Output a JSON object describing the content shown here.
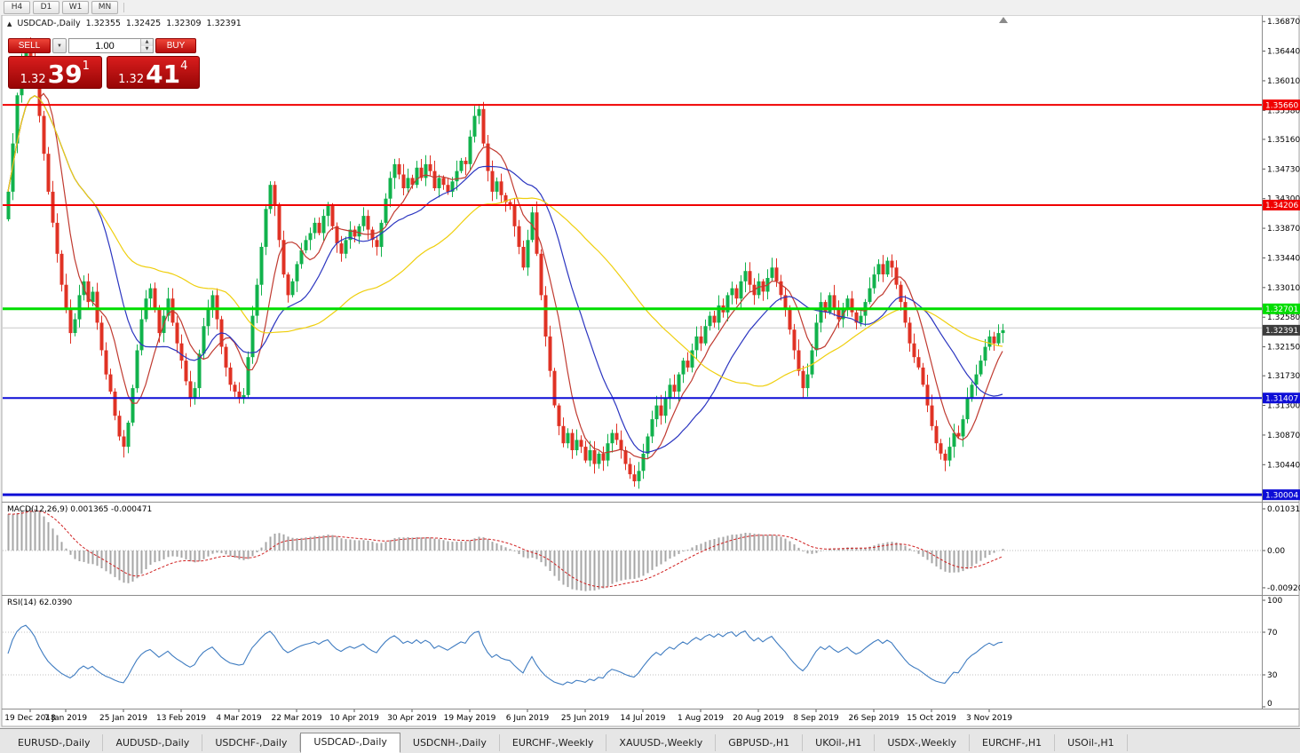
{
  "toolbar": {
    "periods": [
      "H4",
      "D1",
      "W1",
      "MN"
    ]
  },
  "header": {
    "icon": "▲",
    "title": "USDCAD-,Daily",
    "open": "1.32355",
    "high": "1.32425",
    "low": "1.32309",
    "close": "1.32391"
  },
  "trade_panel": {
    "sell_label": "SELL",
    "buy_label": "BUY",
    "volume": "1.00",
    "bid_prefix": "1.32",
    "bid_big": "39",
    "bid_sup": "1",
    "ask_prefix": "1.32",
    "ask_big": "41",
    "ask_sup": "4"
  },
  "price_axis": {
    "labels": [
      "1.36870",
      "1.36440",
      "1.36010",
      "1.35580",
      "1.35160",
      "1.34730",
      "1.34300",
      "1.33870",
      "1.33440",
      "1.33010",
      "1.32580",
      "1.32150",
      "1.31730",
      "1.31300",
      "1.30870",
      "1.30440",
      "1.30010"
    ]
  },
  "levels": [
    {
      "value": 1.3566,
      "label": "1.35660",
      "color": "#f00000",
      "width": 2
    },
    {
      "value": 1.34206,
      "label": "1.34206",
      "color": "#f00000",
      "width": 2
    },
    {
      "value": 1.32701,
      "label": "1.32701",
      "color": "#00dd00",
      "width": 3
    },
    {
      "value": 1.31407,
      "label": "1.31407",
      "color": "#0d0dd6",
      "width": 2
    },
    {
      "value": 1.30004,
      "label": "1.30004",
      "color": "#0d0dd6",
      "width": 3
    }
  ],
  "current_price": {
    "value": 1.32391,
    "label": "1.32391",
    "bg": "#3c3c3c"
  },
  "ask_line": {
    "value": 1.32425,
    "color": "#c8c8c8"
  },
  "macd": {
    "label": "MACD(12,26,9) 0.001365 -0.000471",
    "scale_labels": [
      "0.010311",
      "0.00",
      "-0.009203"
    ],
    "fast": 12,
    "slow": 26,
    "signal": 9,
    "history_bias": 0.009,
    "histogram_color": "#a6a6a6",
    "signal_color": "#d02020"
  },
  "rsi": {
    "label": "RSI(14) 62.0390",
    "scale_labels": [
      "100",
      "70",
      "30",
      "0"
    ],
    "period": 14,
    "levels": [
      70,
      30
    ],
    "line_color": "#3f7cc1"
  },
  "dates": {
    "step": 13,
    "labels": [
      "19 Dec 2018",
      "7 Jan 2019",
      "25 Jan 2019",
      "13 Feb 2019",
      "4 Mar 2019",
      "22 Mar 2019",
      "10 Apr 2019",
      "30 Apr 2019",
      "19 May 2019",
      "6 Jun 2019",
      "25 Jun 2019",
      "14 Jul 2019",
      "1 Aug 2019",
      "20 Aug 2019",
      "8 Sep 2019",
      "26 Sep 2019",
      "15 Oct 2019",
      "3 Nov 2019"
    ]
  },
  "tabs": {
    "active_index": 3,
    "items": [
      "EURUSD-,Daily",
      "AUDUSD-,Daily",
      "USDCHF-,Daily",
      "USDCAD-,Daily",
      "USDCNH-,Daily",
      "EURCHF-,Weekly",
      "XAUUSD-,Weekly",
      "GBPUSD-,H1",
      "UKOil-,H1",
      "USDX-,Weekly",
      "EURCHF-,H1",
      "USOil-,H1"
    ],
    "note": "active tab is USDCAD-,Daily"
  },
  "chart_data": {
    "type": "candlestick",
    "symbol": "USDCAD-",
    "timeframe": "Daily",
    "up_color": "#11b24c",
    "down_color": "#e03224",
    "first_open": 1.34,
    "ma": [
      {
        "period": 8,
        "color": "#c03a30"
      },
      {
        "period": 20,
        "color": "#2b35c0"
      },
      {
        "period": 50,
        "color": "#efcf0e"
      }
    ],
    "closes": [
      1.344,
      1.351,
      1.358,
      1.363,
      1.3655,
      1.3635,
      1.3605,
      1.355,
      1.3495,
      1.344,
      1.3395,
      1.335,
      1.3305,
      1.327,
      1.3235,
      1.3255,
      1.329,
      1.331,
      1.328,
      1.3295,
      1.325,
      1.321,
      1.3175,
      1.315,
      1.3115,
      1.3085,
      1.307,
      1.3105,
      1.3155,
      1.321,
      1.3255,
      1.3285,
      1.33,
      1.327,
      1.3235,
      1.326,
      1.3285,
      1.325,
      1.322,
      1.3195,
      1.3165,
      1.314,
      1.3155,
      1.3205,
      1.3245,
      1.327,
      1.329,
      1.3255,
      1.3215,
      1.3185,
      1.316,
      1.315,
      1.314,
      1.3145,
      1.32,
      1.326,
      1.3305,
      1.336,
      1.3415,
      1.345,
      1.342,
      1.337,
      1.332,
      1.329,
      1.331,
      1.3335,
      1.3355,
      1.337,
      1.338,
      1.3395,
      1.338,
      1.3405,
      1.342,
      1.339,
      1.3365,
      1.335,
      1.337,
      1.3385,
      1.3375,
      1.339,
      1.3405,
      1.3385,
      1.337,
      1.336,
      1.3395,
      1.343,
      1.346,
      1.348,
      1.3465,
      1.3445,
      1.346,
      1.345,
      1.3475,
      1.346,
      1.348,
      1.347,
      1.3445,
      1.346,
      1.345,
      1.344,
      1.3455,
      1.347,
      1.3485,
      1.348,
      1.352,
      1.355,
      1.356,
      1.351,
      1.347,
      1.344,
      1.3455,
      1.3435,
      1.3425,
      1.342,
      1.339,
      1.336,
      1.333,
      1.337,
      1.341,
      1.335,
      1.329,
      1.323,
      1.318,
      1.313,
      1.31,
      1.3075,
      1.309,
      1.3065,
      1.308,
      1.307,
      1.305,
      1.3065,
      1.3045,
      1.306,
      1.305,
      1.3075,
      1.309,
      1.308,
      1.3065,
      1.3045,
      1.303,
      1.302,
      1.3035,
      1.306,
      1.3085,
      1.311,
      1.313,
      1.3115,
      1.314,
      1.316,
      1.315,
      1.3175,
      1.3195,
      1.3185,
      1.321,
      1.323,
      1.322,
      1.3245,
      1.326,
      1.325,
      1.3275,
      1.3265,
      1.329,
      1.33,
      1.3285,
      1.331,
      1.3325,
      1.3305,
      1.329,
      1.331,
      1.3295,
      1.3315,
      1.333,
      1.331,
      1.329,
      1.327,
      1.324,
      1.321,
      1.318,
      1.3155,
      1.3175,
      1.321,
      1.325,
      1.328,
      1.3265,
      1.329,
      1.327,
      1.3255,
      1.327,
      1.3285,
      1.3265,
      1.325,
      1.326,
      1.328,
      1.33,
      1.332,
      1.3335,
      1.332,
      1.334,
      1.333,
      1.3305,
      1.328,
      1.325,
      1.322,
      1.32,
      1.3185,
      1.316,
      1.313,
      1.31,
      1.3075,
      1.306,
      1.305,
      1.307,
      1.309,
      1.3085,
      1.311,
      1.314,
      1.316,
      1.3175,
      1.3195,
      1.3215,
      1.323,
      1.322,
      1.3235,
      1.32391
    ]
  }
}
